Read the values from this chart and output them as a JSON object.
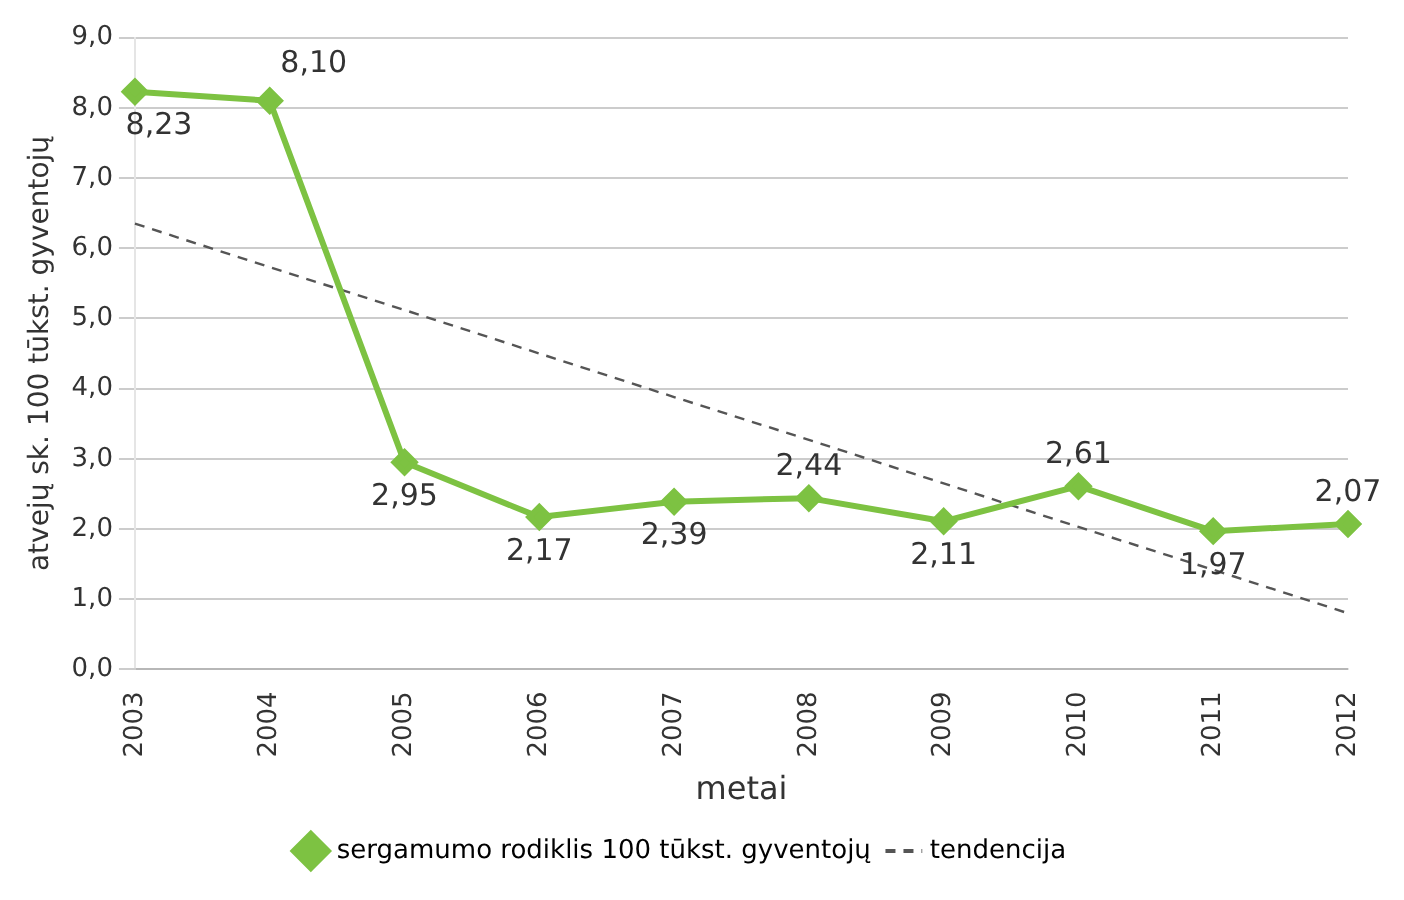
{
  "chart_data": {
    "type": "line",
    "ylabel": "atvejų sk. 100 tūkst. gyventojų",
    "xlabel": "metai",
    "categories": [
      "2003",
      "2004",
      "2005",
      "2006",
      "2007",
      "2008",
      "2009",
      "2010",
      "2011",
      "2012"
    ],
    "ylim": [
      0,
      9
    ],
    "yticks": [
      {
        "value": 0,
        "label": "0,0"
      },
      {
        "value": 1,
        "label": "1,0"
      },
      {
        "value": 2,
        "label": "2,0"
      },
      {
        "value": 3,
        "label": "3,0"
      },
      {
        "value": 4,
        "label": "4,0"
      },
      {
        "value": 5,
        "label": "5,0"
      },
      {
        "value": 6,
        "label": "6,0"
      },
      {
        "value": 7,
        "label": "7,0"
      },
      {
        "value": 8,
        "label": "8,0"
      },
      {
        "value": 9,
        "label": "9,0"
      }
    ],
    "grid": "y",
    "legend": "bottom",
    "series": [
      {
        "name": "sergamumo rodiklis 100 tūkst. gyventojų",
        "color": "#7dc242",
        "marker": "diamond",
        "line_style": "solid",
        "values": [
          8.23,
          8.1,
          2.95,
          2.17,
          2.39,
          2.44,
          2.11,
          2.61,
          1.97,
          2.07
        ],
        "value_labels": [
          "8,23",
          "8,10",
          "2,95",
          "2,17",
          "2,39",
          "2,44",
          "2,11",
          "2,61",
          "1,97",
          "2,07"
        ]
      },
      {
        "name": "tendencija",
        "color": "#555555",
        "marker": "none",
        "line_style": "dashed",
        "values": [
          6.35,
          5.73,
          5.12,
          4.5,
          3.88,
          3.27,
          2.65,
          2.03,
          1.42,
          0.8
        ]
      }
    ]
  }
}
